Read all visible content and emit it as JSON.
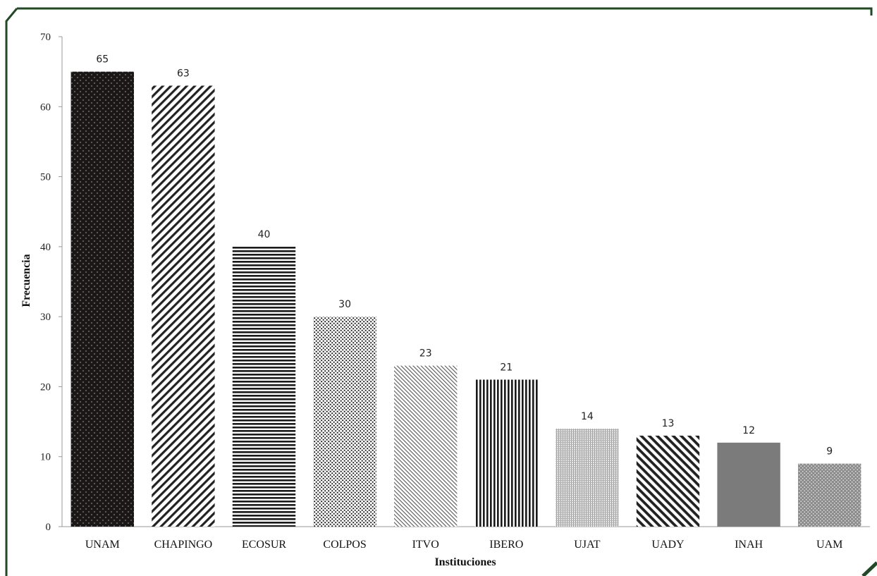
{
  "chart_data": {
    "type": "bar",
    "title": "",
    "xlabel": "Instituciones",
    "ylabel": "Frecuencia",
    "ylim": [
      0,
      70
    ],
    "yticks": [
      0,
      10,
      20,
      30,
      40,
      50,
      60,
      70
    ],
    "categories": [
      "UNAM",
      "CHAPINGO",
      "ECOSUR",
      "COLPOS",
      "ITVO",
      "IBERO",
      "UJAT",
      "UADY",
      "INAH",
      "UAM"
    ],
    "values": [
      65,
      63,
      40,
      30,
      23,
      21,
      14,
      13,
      12,
      9
    ],
    "patterns": [
      "dots-on-black",
      "diagonal-left",
      "horizontal-lines",
      "dense-dots",
      "diagonal-fine",
      "vertical-lines",
      "fine-grid-light",
      "diagonal-right",
      "solid-gray",
      "dots-on-gray"
    ],
    "grid": false,
    "legend": "none",
    "data_labels": true,
    "frame_color": "#1f4a24"
  }
}
